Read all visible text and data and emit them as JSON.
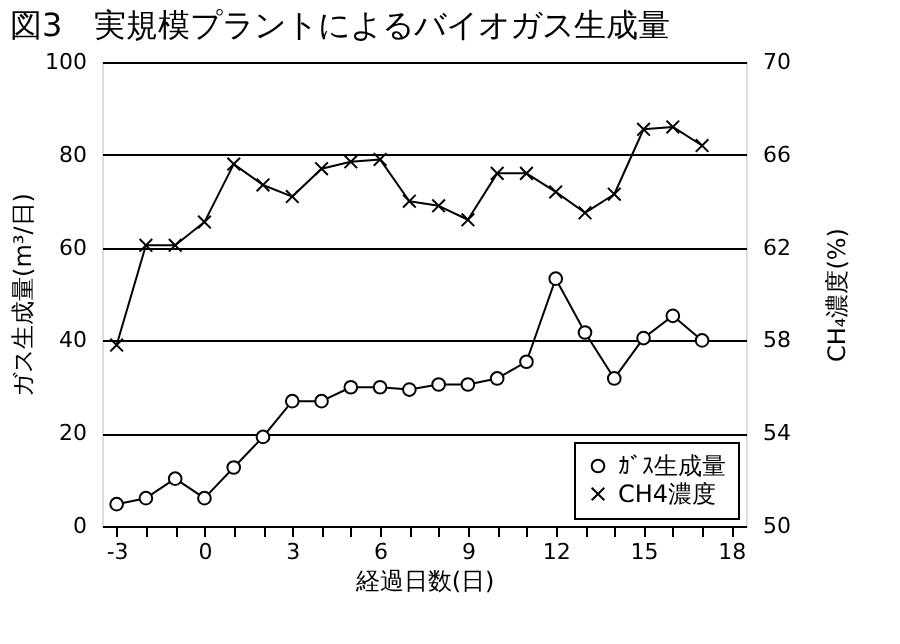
{
  "chart_data": {
    "type": "line",
    "title": "図3　実規模プラントによるバイオガス生成量",
    "xlabel": "経過日数(日)",
    "ylabel": "ガス生成量(m³/日)",
    "y2label": "CH₄濃度(%)",
    "x": [
      -3,
      -2,
      -1,
      0,
      1,
      2,
      3,
      4,
      5,
      6,
      7,
      8,
      9,
      10,
      11,
      12,
      13,
      14,
      15,
      16,
      17
    ],
    "series": [
      {
        "name": "ｶﾞｽ生成量",
        "color": "#000000",
        "marker": "circle",
        "values": [
          4.7,
          6,
          10.2,
          6,
          12.6,
          19.2,
          26.9,
          26.9,
          29.9,
          29.9,
          29.4,
          30.5,
          30.5,
          31.8,
          35.4,
          53.3,
          41.7,
          31.8,
          40.5,
          45.3,
          40
        ]
      },
      {
        "name": "CH4濃度",
        "color": "#000000",
        "marker": "cross",
        "axis": "y2",
        "values": [
          57.8,
          62.1,
          62.1,
          63.1,
          65.6,
          64.7,
          64.2,
          65.4,
          65.7,
          65.8,
          64.0,
          63.8,
          63.2,
          65.2,
          65.2,
          64.4,
          63.5,
          64.3,
          67.1,
          67.2,
          66.4
        ]
      }
    ],
    "xlim": [
      -3.5,
      18.5
    ],
    "xticks": [
      -3,
      {
        "value": -2,
        "label": null
      },
      {
        "value": -1,
        "label": null
      },
      0,
      {
        "value": 1,
        "label": null
      },
      {
        "value": 2,
        "label": null
      },
      3,
      {
        "value": 4,
        "label": null
      },
      {
        "value": 5,
        "label": null
      },
      6,
      {
        "value": 7,
        "label": null
      },
      {
        "value": 8,
        "label": null
      },
      9,
      {
        "value": 10,
        "label": null
      },
      {
        "value": 11,
        "label": null
      },
      12,
      {
        "value": 13,
        "label": null
      },
      {
        "value": 14,
        "label": null
      },
      15,
      {
        "value": 16,
        "label": null
      },
      {
        "value": 17,
        "label": null
      },
      18
    ],
    "ylim": [
      0,
      100
    ],
    "yticks": [
      0,
      20,
      40,
      60,
      80,
      100
    ],
    "y2lim": [
      50,
      70
    ],
    "y2ticks": [
      50,
      54,
      58,
      62,
      66,
      70
    ],
    "grid": "y",
    "legend": "bottom right",
    "line_style": "solid"
  }
}
